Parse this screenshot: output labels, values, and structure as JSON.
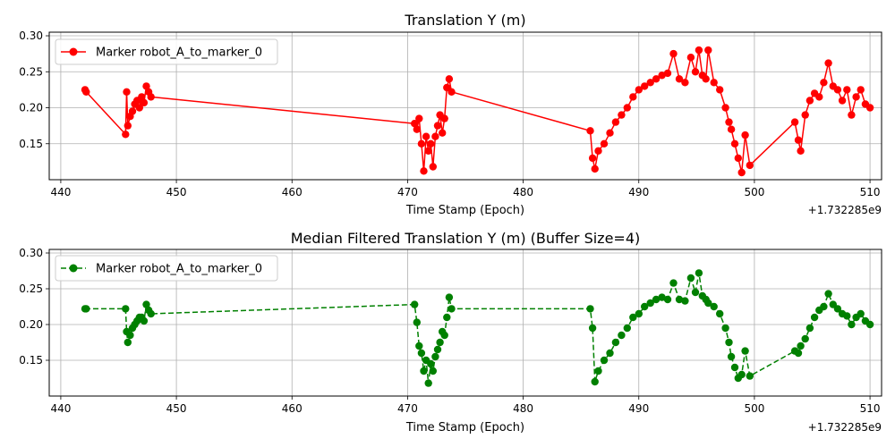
{
  "chart_data": [
    {
      "type": "line",
      "title": "Translation Y (m)",
      "xlabel": "Time Stamp (Epoch)",
      "x_offset_label": "+1.732285e9",
      "ylabel": "",
      "xlim": [
        439.0,
        511.0
      ],
      "ylim": [
        0.1,
        0.305
      ],
      "xticks": [
        440,
        450,
        460,
        470,
        480,
        490,
        500,
        510
      ],
      "yticks": [
        0.15,
        0.2,
        0.25,
        0.3
      ],
      "xtick_labels": [
        "440",
        "450",
        "460",
        "470",
        "480",
        "490",
        "500",
        "510"
      ],
      "ytick_labels": [
        "0.15",
        "0.20",
        "0.25",
        "0.30"
      ],
      "grid": true,
      "legend_position": "top-left",
      "color": "#ff0000",
      "linestyle": "solid",
      "series": [
        {
          "name": "Marker robot_A_to_marker_0",
          "x": [
            442.1,
            442.2,
            445.6,
            445.7,
            445.8,
            446.0,
            446.2,
            446.4,
            446.6,
            446.8,
            447.0,
            447.2,
            447.4,
            447.6,
            447.8,
            470.6,
            470.8,
            471.0,
            471.2,
            471.4,
            471.6,
            471.8,
            472.0,
            472.2,
            472.4,
            472.6,
            472.8,
            473.0,
            473.2,
            473.4,
            473.6,
            473.8,
            485.8,
            486.0,
            486.2,
            486.5,
            487.0,
            487.5,
            488.0,
            488.5,
            489.0,
            489.5,
            490.0,
            490.5,
            491.0,
            491.5,
            492.0,
            492.5,
            493.0,
            493.5,
            494.0,
            494.5,
            494.9,
            495.2,
            495.5,
            495.8,
            496.0,
            496.5,
            497.0,
            497.5,
            497.8,
            498.0,
            498.3,
            498.6,
            498.9,
            499.2,
            499.6,
            503.5,
            503.8,
            504.0,
            504.4,
            504.8,
            505.2,
            505.6,
            506.0,
            506.4,
            506.8,
            507.2,
            507.6,
            508.0,
            508.4,
            508.8,
            509.2,
            509.6,
            510.0
          ],
          "y": [
            0.225,
            0.222,
            0.163,
            0.222,
            0.175,
            0.188,
            0.195,
            0.205,
            0.21,
            0.2,
            0.215,
            0.207,
            0.23,
            0.222,
            0.215,
            0.178,
            0.17,
            0.185,
            0.15,
            0.112,
            0.16,
            0.14,
            0.15,
            0.118,
            0.16,
            0.175,
            0.19,
            0.165,
            0.185,
            0.228,
            0.24,
            0.222,
            0.168,
            0.13,
            0.115,
            0.14,
            0.15,
            0.165,
            0.18,
            0.19,
            0.2,
            0.215,
            0.225,
            0.23,
            0.235,
            0.24,
            0.245,
            0.248,
            0.275,
            0.24,
            0.235,
            0.27,
            0.25,
            0.28,
            0.245,
            0.24,
            0.28,
            0.235,
            0.225,
            0.2,
            0.18,
            0.17,
            0.15,
            0.13,
            0.11,
            0.162,
            0.12,
            0.18,
            0.155,
            0.14,
            0.19,
            0.21,
            0.22,
            0.215,
            0.235,
            0.262,
            0.23,
            0.225,
            0.21,
            0.225,
            0.19,
            0.215,
            0.225,
            0.205,
            0.2
          ]
        }
      ]
    },
    {
      "type": "line",
      "title": "Median Filtered Translation Y (m) (Buffer Size=4)",
      "xlabel": "Time Stamp (Epoch)",
      "x_offset_label": "+1.732285e9",
      "ylabel": "",
      "xlim": [
        439.0,
        511.0
      ],
      "ylim": [
        0.1,
        0.305
      ],
      "xticks": [
        440,
        450,
        460,
        470,
        480,
        490,
        500,
        510
      ],
      "yticks": [
        0.15,
        0.2,
        0.25,
        0.3
      ],
      "xtick_labels": [
        "440",
        "450",
        "460",
        "470",
        "480",
        "490",
        "500",
        "510"
      ],
      "ytick_labels": [
        "0.15",
        "0.20",
        "0.25",
        "0.30"
      ],
      "grid": true,
      "legend_position": "top-left",
      "color": "#008000",
      "linestyle": "dashed",
      "series": [
        {
          "name": "Marker robot_A_to_marker_0",
          "x": [
            442.1,
            442.2,
            445.6,
            445.7,
            445.8,
            446.0,
            446.2,
            446.4,
            446.6,
            446.8,
            447.0,
            447.2,
            447.4,
            447.6,
            447.8,
            470.6,
            470.8,
            471.0,
            471.2,
            471.4,
            471.6,
            471.8,
            472.0,
            472.2,
            472.4,
            472.6,
            472.8,
            473.0,
            473.2,
            473.4,
            473.6,
            473.8,
            485.8,
            486.0,
            486.2,
            486.5,
            487.0,
            487.5,
            488.0,
            488.5,
            489.0,
            489.5,
            490.0,
            490.5,
            491.0,
            491.5,
            492.0,
            492.5,
            493.0,
            493.5,
            494.0,
            494.5,
            494.9,
            495.2,
            495.5,
            495.8,
            496.0,
            496.5,
            497.0,
            497.5,
            497.8,
            498.0,
            498.3,
            498.6,
            498.9,
            499.2,
            499.6,
            503.5,
            503.8,
            504.0,
            504.4,
            504.8,
            505.2,
            505.6,
            506.0,
            506.4,
            506.8,
            507.2,
            507.6,
            508.0,
            508.4,
            508.8,
            509.2,
            509.6,
            510.0
          ],
          "y": [
            0.222,
            0.222,
            0.222,
            0.19,
            0.175,
            0.185,
            0.195,
            0.2,
            0.205,
            0.21,
            0.21,
            0.205,
            0.228,
            0.22,
            0.215,
            0.228,
            0.203,
            0.17,
            0.16,
            0.135,
            0.15,
            0.118,
            0.145,
            0.135,
            0.155,
            0.165,
            0.175,
            0.19,
            0.185,
            0.21,
            0.238,
            0.222,
            0.222,
            0.195,
            0.12,
            0.135,
            0.15,
            0.16,
            0.175,
            0.185,
            0.195,
            0.21,
            0.215,
            0.225,
            0.23,
            0.235,
            0.238,
            0.235,
            0.258,
            0.235,
            0.233,
            0.265,
            0.245,
            0.272,
            0.24,
            0.235,
            0.23,
            0.225,
            0.215,
            0.195,
            0.175,
            0.155,
            0.14,
            0.125,
            0.13,
            0.163,
            0.128,
            0.163,
            0.16,
            0.17,
            0.18,
            0.195,
            0.21,
            0.22,
            0.225,
            0.243,
            0.228,
            0.222,
            0.215,
            0.212,
            0.2,
            0.21,
            0.215,
            0.205,
            0.2
          ]
        }
      ]
    }
  ]
}
